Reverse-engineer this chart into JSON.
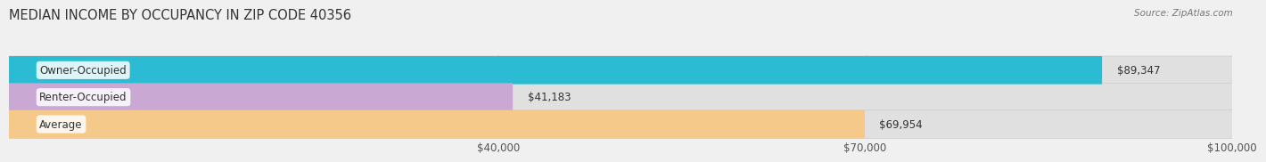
{
  "title": "MEDIAN INCOME BY OCCUPANCY IN ZIP CODE 40356",
  "source": "Source: ZipAtlas.com",
  "categories": [
    "Owner-Occupied",
    "Renter-Occupied",
    "Average"
  ],
  "values": [
    89347,
    41183,
    69954
  ],
  "bar_colors": [
    "#2bbcd4",
    "#c9a8d4",
    "#f5c98a"
  ],
  "value_labels": [
    "$89,347",
    "$41,183",
    "$69,954"
  ],
  "xlim": [
    0,
    100000
  ],
  "xticks": [
    40000,
    70000,
    100000
  ],
  "xtick_labels": [
    "$40,000",
    "$70,000",
    "$100,000"
  ],
  "background_color": "#f0f0f0",
  "bar_background_color": "#e0e0e0",
  "title_fontsize": 10.5,
  "label_fontsize": 8.5,
  "value_fontsize": 8.5,
  "bar_height": 0.52
}
